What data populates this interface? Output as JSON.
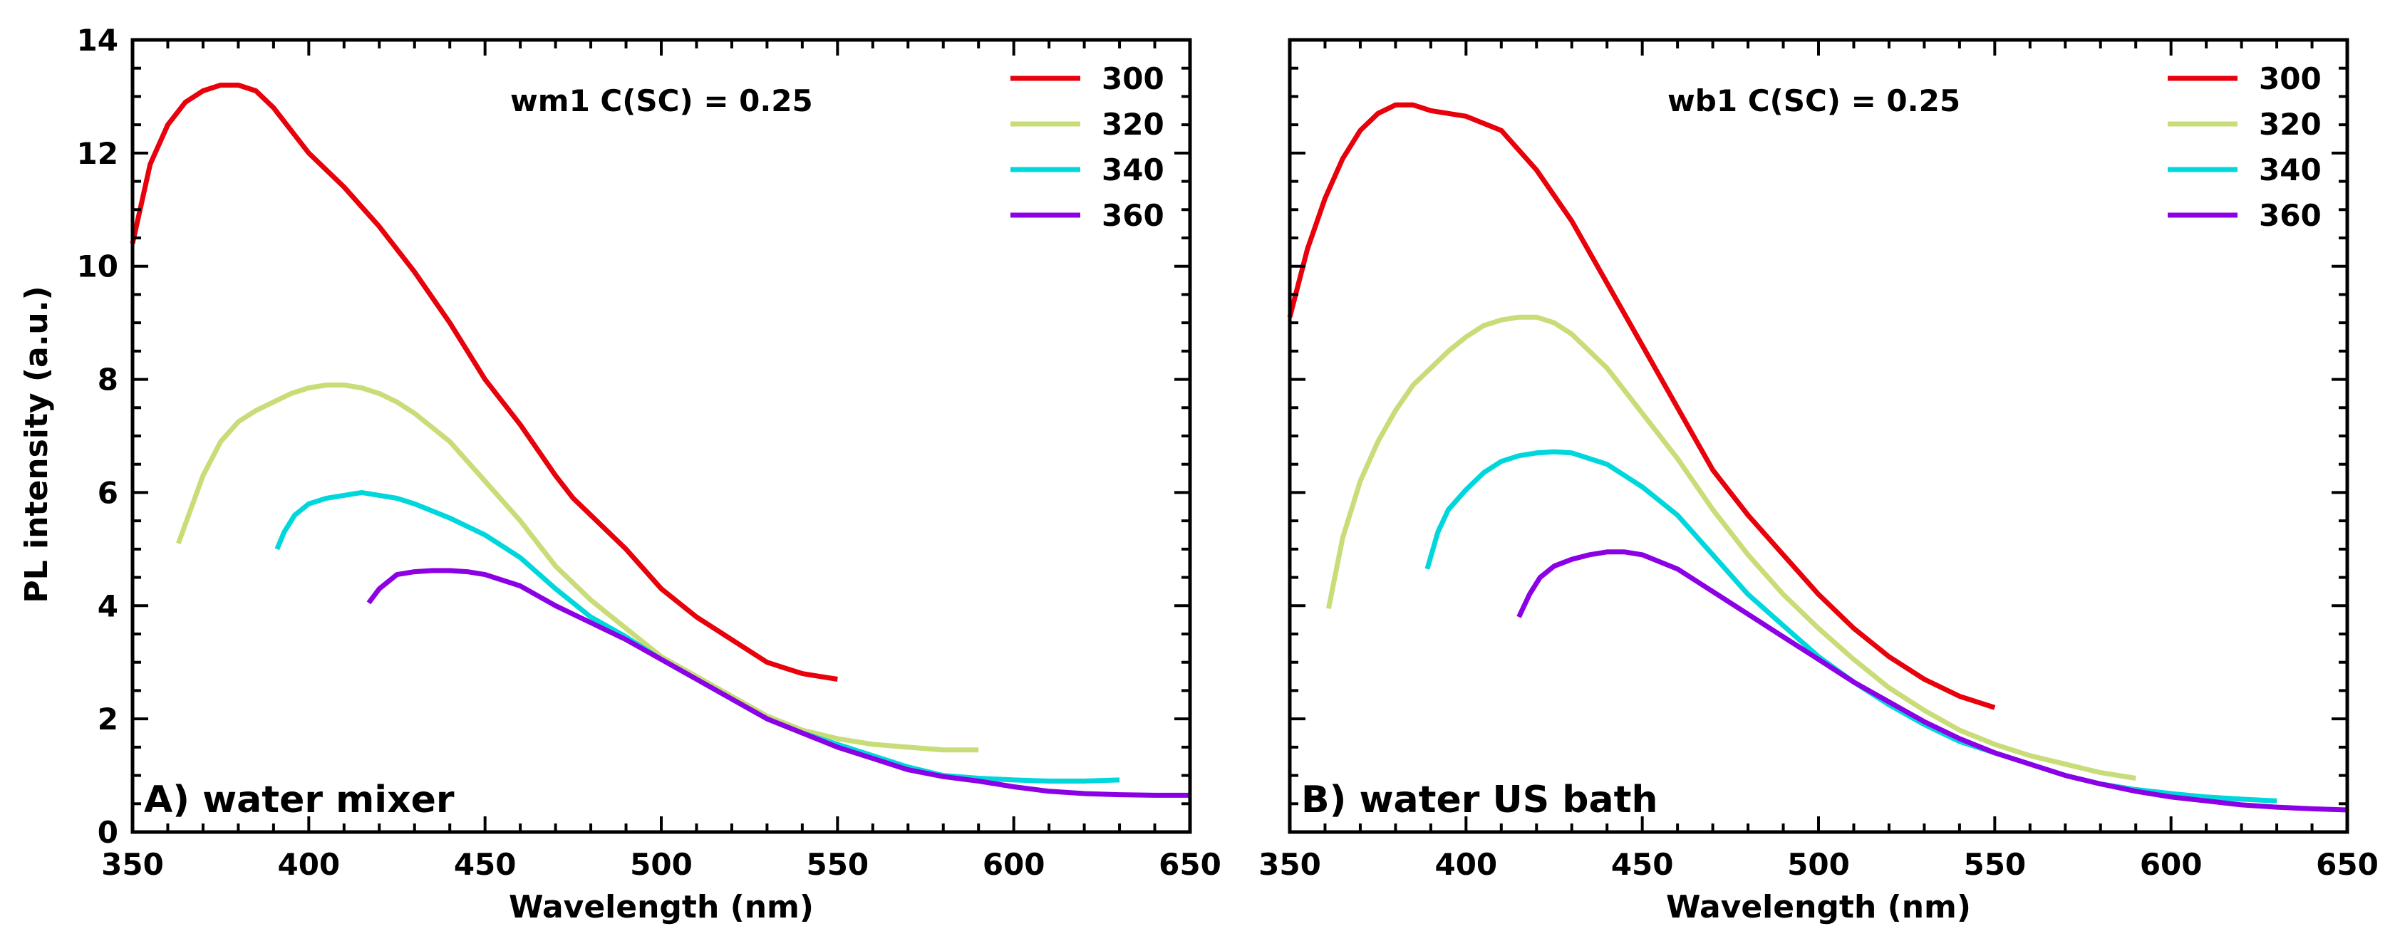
{
  "chart_data": [
    {
      "type": "line",
      "panel_label": "A) water mixer",
      "annotation": "wm1 C(SC) = 0.25",
      "xlabel": "Wavelength (nm)",
      "ylabel": "PL intensity (a.u.)",
      "xlim": [
        350,
        650
      ],
      "ylim": [
        0,
        14
      ],
      "xticks": [
        350,
        400,
        450,
        500,
        550,
        600,
        650
      ],
      "yticks": [
        0,
        2,
        4,
        6,
        8,
        10,
        12,
        14
      ],
      "legend_position": "top-right",
      "series": [
        {
          "name": "300",
          "color": "#e8000b",
          "x": [
            350,
            355,
            360,
            365,
            370,
            375,
            380,
            385,
            390,
            395,
            400,
            410,
            420,
            430,
            440,
            450,
            460,
            470,
            475,
            480,
            490,
            500,
            510,
            520,
            530,
            535,
            540,
            545,
            550
          ],
          "y": [
            10.4,
            11.8,
            12.5,
            12.9,
            13.1,
            13.2,
            13.2,
            13.1,
            12.8,
            12.4,
            12.0,
            11.4,
            10.7,
            9.9,
            9.0,
            8.0,
            7.2,
            6.3,
            5.9,
            5.6,
            5.0,
            4.3,
            3.8,
            3.4,
            3.0,
            2.9,
            2.8,
            2.75,
            2.7
          ]
        },
        {
          "name": "320",
          "color": "#c8dc78",
          "x": [
            363,
            370,
            375,
            380,
            385,
            390,
            395,
            400,
            405,
            410,
            415,
            420,
            425,
            430,
            440,
            450,
            460,
            470,
            480,
            490,
            500,
            510,
            520,
            530,
            540,
            550,
            560,
            570,
            580,
            590
          ],
          "y": [
            5.1,
            6.3,
            6.9,
            7.25,
            7.45,
            7.6,
            7.75,
            7.85,
            7.9,
            7.9,
            7.85,
            7.75,
            7.6,
            7.4,
            6.9,
            6.2,
            5.5,
            4.7,
            4.1,
            3.6,
            3.1,
            2.75,
            2.4,
            2.05,
            1.8,
            1.65,
            1.55,
            1.5,
            1.45,
            1.45
          ]
        },
        {
          "name": "340",
          "color": "#00d7dc",
          "x": [
            391,
            393,
            396,
            400,
            405,
            410,
            415,
            420,
            425,
            430,
            440,
            450,
            460,
            470,
            480,
            490,
            500,
            510,
            520,
            530,
            540,
            550,
            560,
            570,
            580,
            590,
            600,
            610,
            620,
            630
          ],
          "y": [
            5.0,
            5.3,
            5.6,
            5.8,
            5.9,
            5.95,
            6.0,
            5.95,
            5.9,
            5.8,
            5.55,
            5.25,
            4.85,
            4.3,
            3.8,
            3.45,
            3.05,
            2.7,
            2.35,
            2.0,
            1.75,
            1.55,
            1.35,
            1.15,
            1.0,
            0.95,
            0.92,
            0.9,
            0.9,
            0.92
          ]
        },
        {
          "name": "360",
          "color": "#8c00e6",
          "x": [
            417,
            420,
            425,
            430,
            435,
            440,
            445,
            450,
            460,
            470,
            480,
            490,
            500,
            510,
            520,
            530,
            540,
            550,
            560,
            570,
            580,
            590,
            600,
            610,
            620,
            630,
            640,
            650
          ],
          "y": [
            4.05,
            4.3,
            4.55,
            4.6,
            4.62,
            4.62,
            4.6,
            4.55,
            4.35,
            4.0,
            3.7,
            3.4,
            3.05,
            2.7,
            2.35,
            2.0,
            1.75,
            1.5,
            1.3,
            1.1,
            0.98,
            0.9,
            0.8,
            0.72,
            0.68,
            0.66,
            0.65,
            0.65
          ]
        }
      ]
    },
    {
      "type": "line",
      "panel_label": "B) water US bath",
      "annotation": "wb1 C(SC) = 0.25",
      "xlabel": "Wavelength (nm)",
      "ylabel": "",
      "xlim": [
        350,
        650
      ],
      "ylim": [
        0,
        14
      ],
      "xticks": [
        350,
        400,
        450,
        500,
        550,
        600,
        650
      ],
      "yticks": [
        0,
        2,
        4,
        6,
        8,
        10,
        12,
        14
      ],
      "legend_position": "top-right",
      "series": [
        {
          "name": "300",
          "color": "#e8000b",
          "x": [
            350,
            355,
            360,
            365,
            370,
            375,
            380,
            385,
            390,
            395,
            400,
            410,
            420,
            430,
            440,
            450,
            460,
            470,
            480,
            490,
            500,
            510,
            520,
            530,
            540,
            550
          ],
          "y": [
            9.1,
            10.3,
            11.2,
            11.9,
            12.4,
            12.7,
            12.85,
            12.85,
            12.75,
            12.7,
            12.65,
            12.4,
            11.7,
            10.8,
            9.7,
            8.6,
            7.5,
            6.4,
            5.6,
            4.9,
            4.2,
            3.6,
            3.1,
            2.7,
            2.4,
            2.2
          ]
        },
        {
          "name": "320",
          "color": "#c8dc78",
          "x": [
            361,
            365,
            370,
            375,
            380,
            385,
            390,
            395,
            400,
            405,
            410,
            415,
            420,
            425,
            430,
            440,
            450,
            460,
            470,
            480,
            490,
            500,
            510,
            520,
            530,
            540,
            550,
            560,
            570,
            580,
            590
          ],
          "y": [
            3.95,
            5.2,
            6.2,
            6.9,
            7.45,
            7.9,
            8.2,
            8.5,
            8.75,
            8.95,
            9.05,
            9.1,
            9.1,
            9.0,
            8.8,
            8.2,
            7.4,
            6.6,
            5.7,
            4.9,
            4.2,
            3.6,
            3.05,
            2.55,
            2.15,
            1.8,
            1.55,
            1.35,
            1.2,
            1.05,
            0.95
          ]
        },
        {
          "name": "340",
          "color": "#00d7dc",
          "x": [
            389,
            392,
            395,
            400,
            405,
            410,
            415,
            420,
            425,
            430,
            440,
            450,
            460,
            470,
            480,
            490,
            500,
            510,
            520,
            530,
            540,
            550,
            560,
            570,
            580,
            590,
            600,
            610,
            620,
            630
          ],
          "y": [
            4.65,
            5.3,
            5.7,
            6.05,
            6.35,
            6.55,
            6.65,
            6.7,
            6.72,
            6.7,
            6.5,
            6.1,
            5.6,
            4.9,
            4.2,
            3.65,
            3.1,
            2.65,
            2.25,
            1.9,
            1.6,
            1.4,
            1.2,
            1.0,
            0.85,
            0.75,
            0.68,
            0.62,
            0.58,
            0.55
          ]
        },
        {
          "name": "360",
          "color": "#8c00e6",
          "x": [
            415,
            418,
            421,
            425,
            430,
            435,
            440,
            445,
            450,
            460,
            470,
            480,
            490,
            500,
            510,
            520,
            530,
            540,
            550,
            560,
            570,
            580,
            590,
            600,
            610,
            620,
            630,
            640,
            650
          ],
          "y": [
            3.8,
            4.2,
            4.5,
            4.7,
            4.82,
            4.9,
            4.95,
            4.95,
            4.9,
            4.65,
            4.25,
            3.85,
            3.45,
            3.05,
            2.65,
            2.3,
            1.95,
            1.65,
            1.4,
            1.2,
            1.0,
            0.85,
            0.72,
            0.62,
            0.55,
            0.48,
            0.44,
            0.41,
            0.39
          ]
        }
      ]
    }
  ]
}
